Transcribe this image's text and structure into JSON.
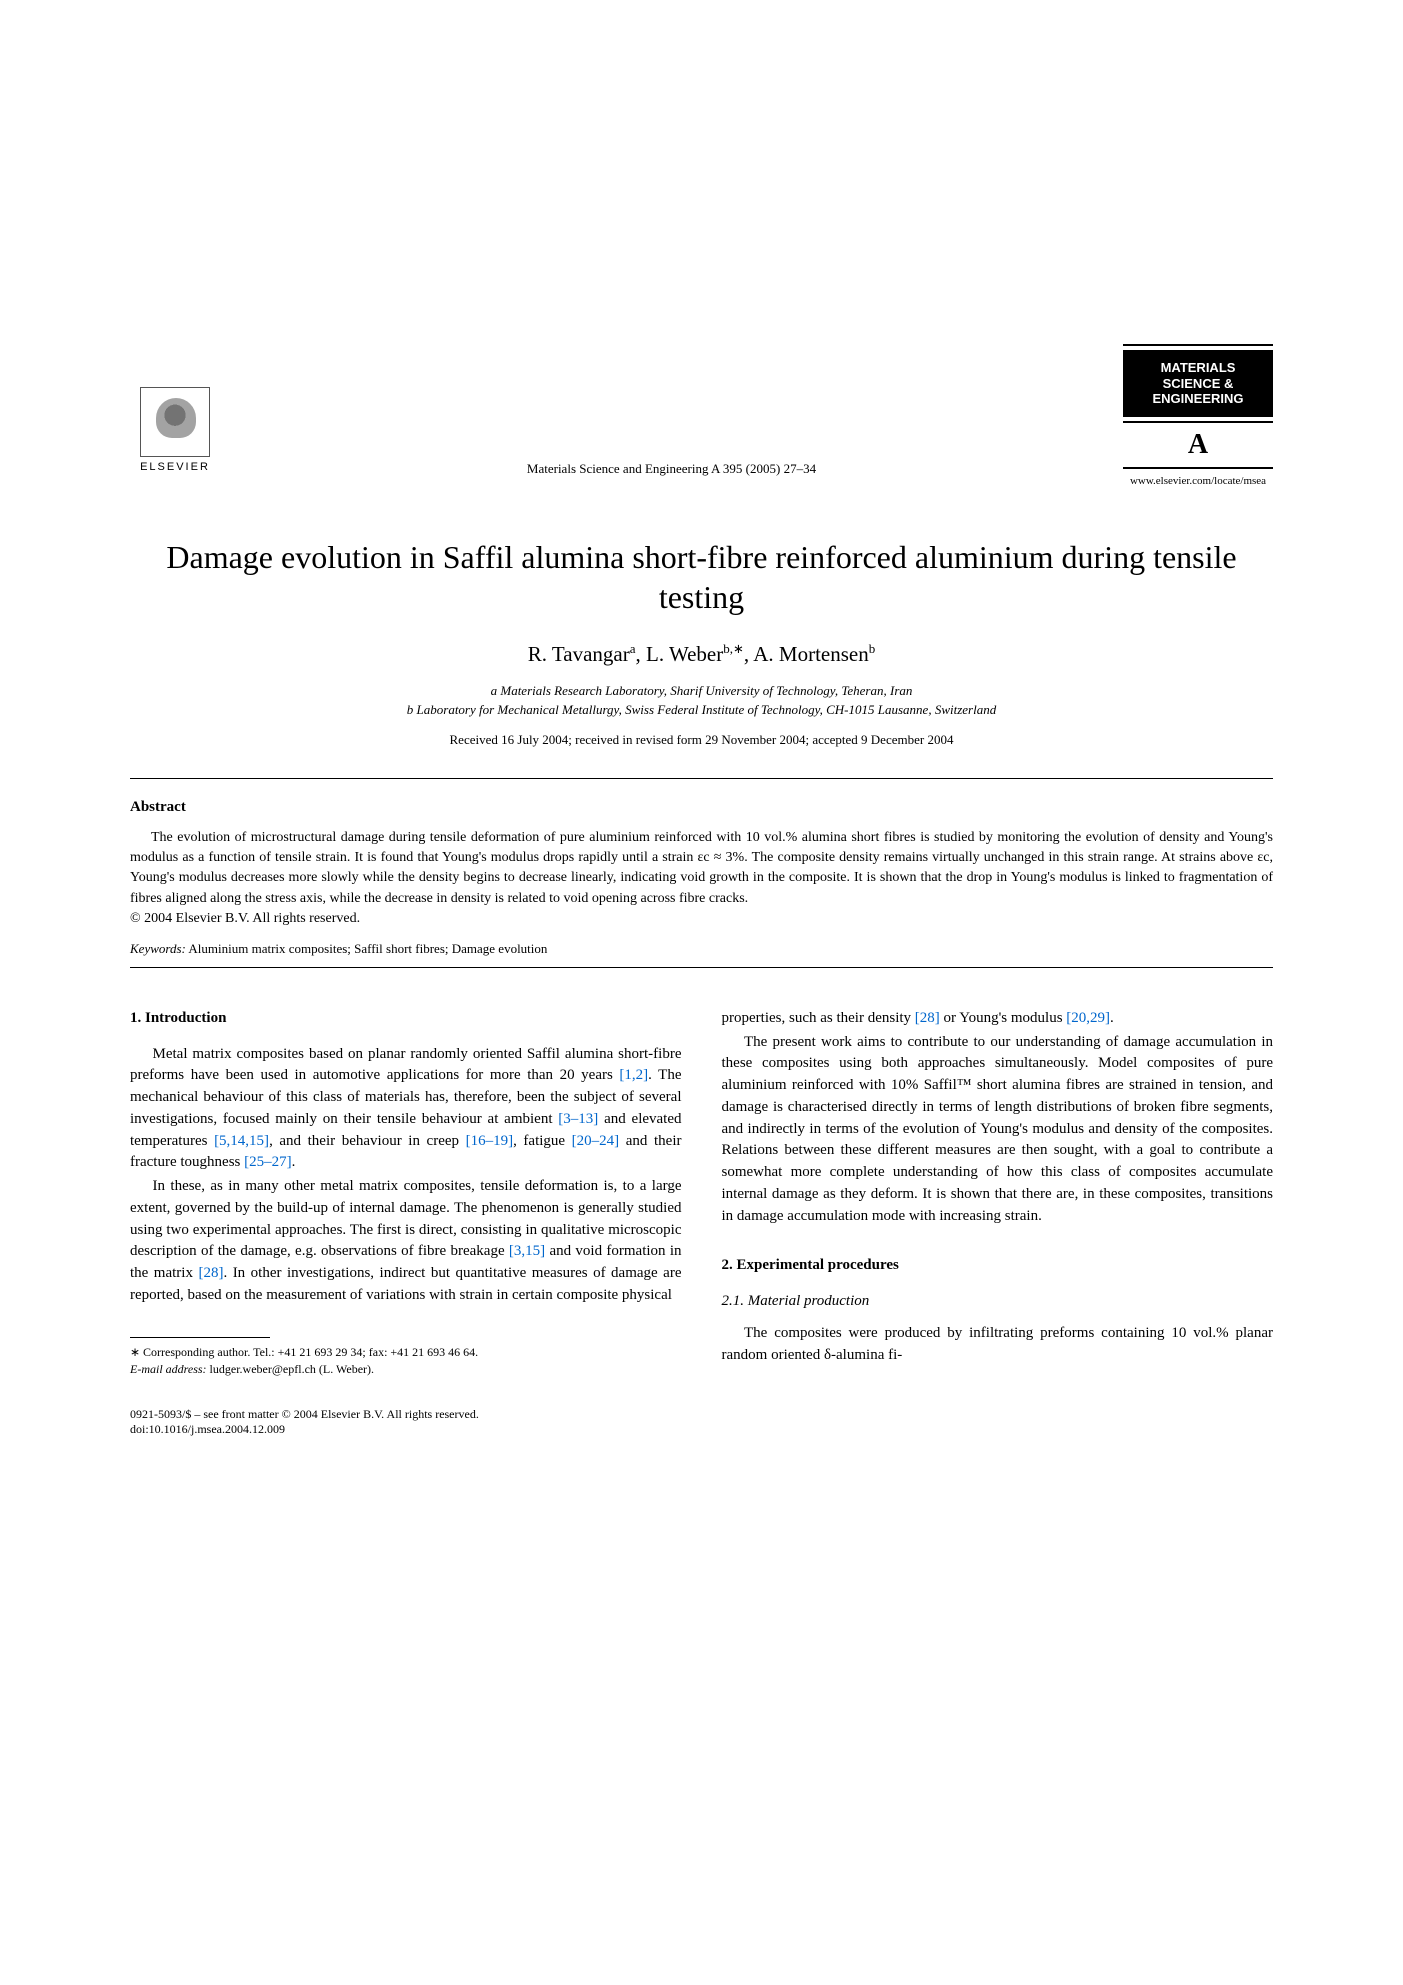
{
  "header": {
    "publisher_name": "ELSEVIER",
    "journal_reference": "Materials Science and Engineering A 395 (2005) 27–34",
    "journal_logo_line1": "MATERIALS",
    "journal_logo_line2": "SCIENCE &",
    "journal_logo_line3": "ENGINEERING",
    "journal_logo_letter": "A",
    "journal_url": "www.elsevier.com/locate/msea"
  },
  "title": "Damage evolution in Saffil alumina short-fibre reinforced aluminium during tensile testing",
  "authors_html": "R. Tavangar<sup>a</sup>, L. Weber<sup>b,∗</sup>, A. Mortensen<sup>b</sup>",
  "affiliations": {
    "a": "a Materials Research Laboratory, Sharif University of Technology, Teheran, Iran",
    "b": "b Laboratory for Mechanical Metallurgy, Swiss Federal Institute of Technology, CH-1015 Lausanne, Switzerland"
  },
  "dates": "Received 16 July 2004; received in revised form 29 November 2004; accepted 9 December 2004",
  "abstract": {
    "heading": "Abstract",
    "text": "The evolution of microstructural damage during tensile deformation of pure aluminium reinforced with 10 vol.% alumina short fibres is studied by monitoring the evolution of density and Young's modulus as a function of tensile strain. It is found that Young's modulus drops rapidly until a strain εc ≈ 3%. The composite density remains virtually unchanged in this strain range. At strains above εc, Young's modulus decreases more slowly while the density begins to decrease linearly, indicating void growth in the composite. It is shown that the drop in Young's modulus is linked to fragmentation of fibres aligned along the stress axis, while the decrease in density is related to void opening across fibre cracks.",
    "copyright": "© 2004 Elsevier B.V. All rights reserved."
  },
  "keywords": {
    "label": "Keywords:",
    "text": " Aluminium matrix composites; Saffil short fibres; Damage evolution"
  },
  "sections": {
    "intro_heading": "1.  Introduction",
    "intro_p1": "Metal matrix composites based on planar randomly oriented Saffil alumina short-fibre preforms have been used in automotive applications for more than 20 years [1,2]. The mechanical behaviour of this class of materials has, therefore, been the subject of several investigations, focused mainly on their tensile behaviour at ambient [3–13] and elevated temperatures [5,14,15], and their behaviour in creep [16–19], fatigue [20–24] and their fracture toughness [25–27].",
    "intro_p2": "In these, as in many other metal matrix composites, tensile deformation is, to a large extent, governed by the build-up of internal damage. The phenomenon is generally studied using two experimental approaches. The first is direct, consisting in qualitative microscopic description of the damage, e.g. observations of fibre breakage [3,15] and void formation in the matrix [28]. In other investigations, indirect but quantitative measures of damage are reported, based on the measurement of variations with strain in certain composite physical",
    "intro_p3_right": "properties, such as their density [28] or Young's modulus [20,29].",
    "intro_p4_right": "The present work aims to contribute to our understanding of damage accumulation in these composites using both approaches simultaneously. Model composites of pure aluminium reinforced with 10% Saffil™ short alumina fibres are strained in tension, and damage is characterised directly in terms of length distributions of broken fibre segments, and indirectly in terms of the evolution of Young's modulus and density of the composites. Relations between these different measures are then sought, with a goal to contribute a somewhat more complete understanding of how this class of composites accumulate internal damage as they deform. It is shown that there are, in these composites, transitions in damage accumulation mode with increasing strain.",
    "exp_heading": "2.  Experimental procedures",
    "exp_sub_heading": "2.1.  Material production",
    "exp_p1": "The composites were produced by infiltrating preforms containing 10 vol.% planar random oriented δ-alumina fi-"
  },
  "footnote": {
    "corresponding": "∗ Corresponding author. Tel.: +41 21 693 29 34; fax: +41 21 693 46 64.",
    "email_label": "E-mail address:",
    "email": " ludger.weber@epfl.ch (L. Weber)."
  },
  "footer": {
    "line1": "0921-5093/$ – see front matter © 2004 Elsevier B.V. All rights reserved.",
    "line2": "doi:10.1016/j.msea.2004.12.009"
  },
  "colors": {
    "text": "#000000",
    "link": "#0066cc",
    "background": "#ffffff"
  }
}
